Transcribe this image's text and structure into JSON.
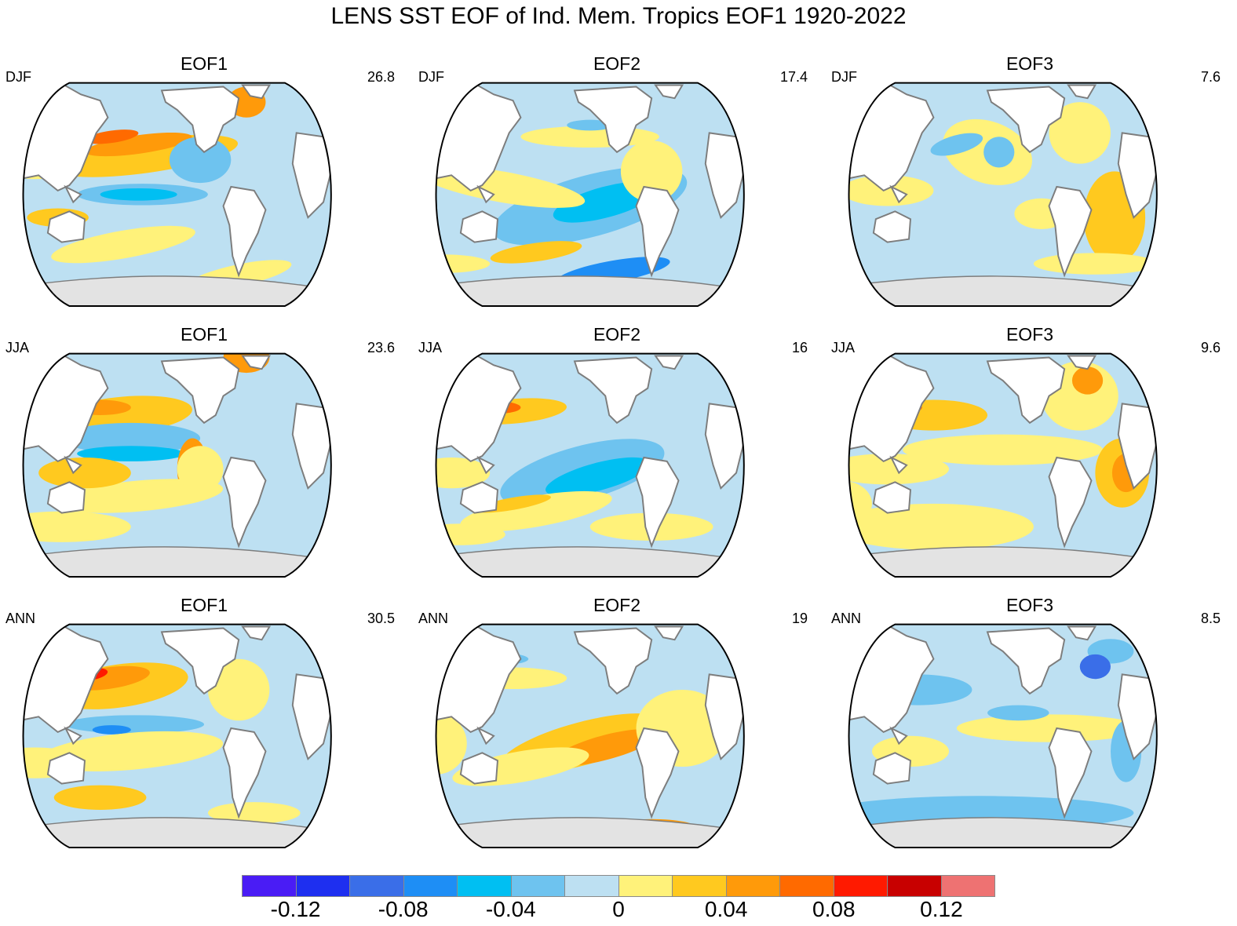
{
  "title": "LENS SST EOF of Ind. Mem. Tropics EOF1 1920-2022",
  "colors": {
    "land": "#ffffff",
    "ice": "#e3e3e3",
    "coast": "#7d7d7d",
    "frame": "#000000"
  },
  "panels": [
    {
      "eof": "EOF1",
      "season": "DJF",
      "variance": "26.8",
      "pattern": "d1"
    },
    {
      "eof": "EOF2",
      "season": "DJF",
      "variance": "17.4",
      "pattern": "d2"
    },
    {
      "eof": "EOF3",
      "season": "DJF",
      "variance": "7.6",
      "pattern": "d3"
    },
    {
      "eof": "EOF1",
      "season": "JJA",
      "variance": "23.6",
      "pattern": "j1"
    },
    {
      "eof": "EOF2",
      "season": "JJA",
      "variance": "16",
      "pattern": "j2"
    },
    {
      "eof": "EOF3",
      "season": "JJA",
      "variance": "9.6",
      "pattern": "j3"
    },
    {
      "eof": "EOF1",
      "season": "ANN",
      "variance": "30.5",
      "pattern": "a1"
    },
    {
      "eof": "EOF2",
      "season": "ANN",
      "variance": "19",
      "pattern": "a2"
    },
    {
      "eof": "EOF3",
      "season": "ANN",
      "variance": "8.5",
      "pattern": "a3"
    }
  ],
  "colorbar": {
    "colors": [
      "#4a1cf5",
      "#1e2ff0",
      "#3a6ee8",
      "#1e8ef5",
      "#00bff2",
      "#6ec3ef",
      "#bde0f2",
      "#fff27a",
      "#ffc91f",
      "#ff9a0a",
      "#ff6a00",
      "#ff1a00",
      "#c80000",
      "#ee7272"
    ],
    "labels": [
      "-0.12",
      "-0.08",
      "-0.04",
      "0",
      "0.04",
      "0.08",
      "0.12"
    ]
  }
}
